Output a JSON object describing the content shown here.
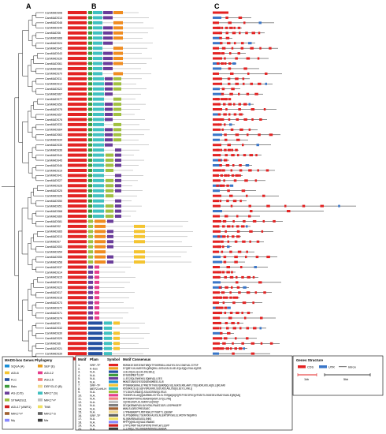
{
  "panels": {
    "a": "A",
    "b": "B",
    "c": "C"
  },
  "genes": [
    "CamMADS08",
    "CamMADS10",
    "CamMADS48",
    "CamMADS49",
    "CamMADS6",
    "CamMADS66",
    "CamMADS24",
    "CamMADS42",
    "CamMADS43",
    "CamMADS39",
    "CamMADS61",
    "CamMADS62",
    "CamMADS70",
    "CamMADS11",
    "CamMADS12",
    "CamMADS22",
    "CamMADS67",
    "CamMADS77",
    "CamMADS56",
    "CamMADS75",
    "CamMADS57",
    "CamMADS76",
    "CamMADS33",
    "CamMADS64",
    "CamMADS63",
    "CamMADS34",
    "CamMADS35",
    "CamMADS36",
    "CamMADS44",
    "CamMADS45",
    "CamMADS46",
    "CamMADS19",
    "CamMADS41",
    "CamMADS27",
    "CamMADS28",
    "CamMADS25",
    "CamMADS26",
    "CamMADS50",
    "CamMADS51",
    "CamMADS68",
    "CamMADS60",
    "CamMADS81",
    "CamMADS2",
    "CamMADS65",
    "CamMADS13",
    "CamMADS7",
    "CamMADS53",
    "CamMADS54",
    "CamMADS55",
    "CamMADS58",
    "CamMADS37",
    "CamMADS14",
    "CamMADS15",
    "CamMADS16",
    "CamMADS23",
    "CamMADS17",
    "CamMADS18",
    "CamMADS73",
    "CamMADS72",
    "CamMADS71",
    "CamMADS74",
    "CamMADS1",
    "CamMADS32",
    "CamMADS30",
    "CamMADS29",
    "CamMADS6",
    "CamMADS21",
    "CamMADS39",
    "CamMADS40"
  ],
  "phylogeny_legend": {
    "title": "MADS-box Genes Phylogeny",
    "items": [
      {
        "label": "SQUA (A)",
        "color": "#1a8fd8"
      },
      {
        "label": "SEP (E)",
        "color": "#e8a020"
      },
      {
        "label": "AGL6",
        "color": "#f4c430"
      },
      {
        "label": "AGL12",
        "color": "#e63c8c"
      },
      {
        "label": "FLC",
        "color": "#2450a0"
      },
      {
        "label": "AGL15",
        "color": "#f08080"
      },
      {
        "label": "Bsis",
        "color": "#3c9c3c"
      },
      {
        "label": "DEF/GLO (B)",
        "color": "#f0d890"
      },
      {
        "label": "AG (C/D)",
        "color": "#6a3d9a"
      },
      {
        "label": "MIKC* (S)",
        "color": "#40c0c0"
      },
      {
        "label": "STMADS11",
        "color": "#a0c040"
      },
      {
        "label": "MIKC*-P",
        "color": "#c0c0c0"
      },
      {
        "label": "AGL17 (ANR1)",
        "color": "#d02020"
      },
      {
        "label": "TM8",
        "color": "#f0e060"
      },
      {
        "label": "MIKC*-P",
        "color": "#a06030"
      },
      {
        "label": "MIKC*-S",
        "color": "#606060"
      },
      {
        "label": "Mγ",
        "color": "#8888ff"
      },
      {
        "label": "Mα",
        "color": "#404040"
      }
    ]
  },
  "motif_table": {
    "headers": {
      "motif": "Motif",
      "pfam": "Pfam",
      "symbol": "Symbol",
      "consensus": "Motif Consensus"
    },
    "rows": [
      {
        "n": "1.",
        "pfam": "SRF-TF",
        "color": "#e32222",
        "seq": "MGRGKIEIKRIENKTNRQVTFSKRRNGLLKKAYELSVLCDAEVALIIFSP"
      },
      {
        "n": "2.",
        "pfam": "K-box",
        "color": "#e8a020",
        "seq": "EYQREYLKLKARYESLQRSQRHLLGEDLGSLSLKELEQLEQQLESALKQIRS"
      },
      {
        "n": "3.",
        "pfam": "N.A.",
        "color": "#2450a0",
        "seq": "LEELDQLELQLEKLDKLSNLQ"
      },
      {
        "n": "4.",
        "pfam": "N.A.",
        "color": "#3c9c3c",
        "seq": "EFGSSSMEKTLERY"
      },
      {
        "n": "5.",
        "pfam": "N.A.",
        "color": "#6a3d9a",
        "seq": "LLEEJEQLENHEKKLSQNKVQLLEES"
      },
      {
        "n": "6.",
        "pfam": "N.A.",
        "color": "#1a8fd8",
        "seq": "MKNSTEAKSSYESDDGNYAMKEELSLR"
      },
      {
        "n": "7.",
        "pfam": "SRF-TF",
        "color": "#f4c430",
        "seq": "PPDNNGKSKRALETMKETRTVKEVQKKMQQLVQLGEKDLRNLAHPLYDQLHDRLKDLAQDLLQRLRAD"
      },
      {
        "n": "8.",
        "pfam": "MEF2-bHLH",
        "color": "#40c0c0",
        "seq": "KDSDKRLSLQLGQFVSMLKKRLSSDLRDLAGLDSQELEEYLLKNLQ"
      },
      {
        "n": "9.",
        "pfam": "N.A.",
        "color": "#a0c040",
        "seq": "YYLSNLPLRNAEQLSDLNCRSNSQLRSLS"
      },
      {
        "n": "10.",
        "pfam": "N.A.",
        "color": "#e63c8c",
        "seq": "TKDHHPLSLAGQQGASRNKLSVTELELTERQWQGQEQPIPYSEIPDCQVFGSETLEKKEDELRSAGYSAKLEQRQSAQ"
      },
      {
        "n": "11.",
        "pfam": "N.A.",
        "color": "#f08080",
        "seq": "MPFDNAFPVKPALRGAGHVQASPLSYQLLPNQ"
      },
      {
        "n": "12.",
        "pfam": "N.A.",
        "color": "#c0c0c0",
        "seq": "IQCNSLKGPLKLSGRAYLEQVKQT"
      },
      {
        "n": "13.",
        "pfam": "N.A.",
        "color": "#808080",
        "seq": "DEYQKSRWKPADLNVVYRALPNAEIGGFLLDSPMHGEPF"
      },
      {
        "n": "14.",
        "pfam": "N.A.",
        "color": "#a06030",
        "seq": "WNNLSLGRSCPMEGSAEC"
      },
      {
        "n": "15.",
        "pfam": "N.A.",
        "color": "#f0d890",
        "seq": "LYPNHGNGRPTLMDTKGKLDYTGNTTLLQEGNP"
      },
      {
        "n": "16.",
        "pfam": "SRF-TF",
        "color": "#606060",
        "seq": "VLPPSQRRKGLTSENFDEVALRSLNLEKPSMYSKLELVRDTHTNQGMFS"
      },
      {
        "n": "17.",
        "pfam": "N.A.",
        "color": "#f0e060",
        "seq": "NLQRAHSRAAEAGSLSHKS"
      },
      {
        "n": "18.",
        "pfam": "N.A.",
        "color": "#8888ff",
        "seq": "MPFPQQHSLKQVAAIVSWGNS"
      },
      {
        "n": "19.",
        "pfam": "N.A.",
        "color": "#d02020",
        "seq": "LPPPLPRRPTAEPSPRTMSTPAPLWTLESPP"
      },
      {
        "n": "20.",
        "pfam": "N.A.",
        "color": "#404040",
        "seq": "LLLVNQLLTKLHAAGAHVDKASLEGAGVA"
      }
    ]
  },
  "structure_legend": {
    "title": "Genes Structure",
    "cds": "CDS",
    "utr": "UTR",
    "intron": "Intron",
    "scale1": "1kb",
    "scale2": "5kb",
    "colors": {
      "cds": "#e32222",
      "utr": "#3a76c8",
      "intron": "#000000"
    }
  },
  "colors": {
    "motif1": "#e32222",
    "motif_k": "#e8a020",
    "motif_blue": "#2450a0",
    "motif_green": "#3c9c3c",
    "motif_purple": "#6a3d9a",
    "motif_cyan": "#40c0c0",
    "motif_lightgreen": "#a0c040",
    "motif_yellow": "#f4c430",
    "motif_pink": "#e63c8c",
    "motif_orange": "#f08c20"
  }
}
